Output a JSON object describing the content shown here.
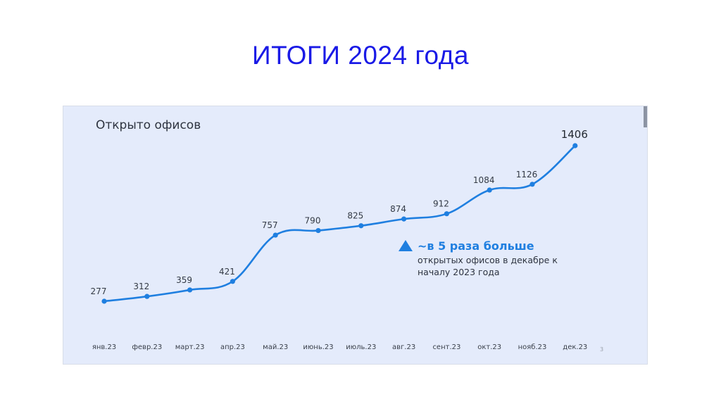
{
  "slide": {
    "title": "ИТОГИ 2024 года",
    "page_number": "3"
  },
  "chart_data": {
    "type": "line",
    "title": "Открыто офисов",
    "categories": [
      "янв.23",
      "февр.23",
      "март.23",
      "апр.23",
      "май.23",
      "июнь.23",
      "июль.23",
      "авг.23",
      "сент.23",
      "окт.23",
      "нояб.23",
      "дек.23"
    ],
    "series": [
      {
        "values": [
          277,
          312,
          359,
          421,
          757,
          790,
          825,
          874,
          912,
          1084,
          1126,
          1406
        ]
      }
    ],
    "ylim": [
      277,
      1406
    ],
    "grid": false,
    "line_color": "#1f7fe0",
    "annotation": {
      "headline": "~в 5 раза больше",
      "line1": "открытых офисов в декабре к",
      "line2": "началу 2023 года",
      "icon": "triangle-up-icon"
    }
  },
  "colors": {
    "title": "#1a1ae6",
    "panel_bg": "#e4ebfb",
    "accent": "#1f7fe0"
  }
}
